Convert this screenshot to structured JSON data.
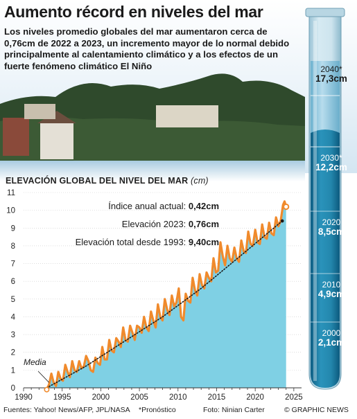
{
  "header": {
    "title": "Aumento récord en niveles del mar",
    "subtitle": "Los niveles promedio globales del mar aumentaron cerca de 0,76cm de 2022 a 2023, un incremento mayor de lo normal debido principalmente al calentamiento climático y a los efectos de un fuerte fenómeno climático El Niño"
  },
  "chart_title": "ELEVACIÓN GLOBAL DEL NIVEL DEL MAR",
  "chart_unit": "(cm)",
  "info": [
    {
      "label": "Índice anual actual: ",
      "value": "0,42cm"
    },
    {
      "label": "Elevación 2023: ",
      "value": "0,76cm"
    },
    {
      "label": "Elevación total desde 1993: ",
      "value": "9,40cm"
    }
  ],
  "media_label": "Media",
  "tube": [
    {
      "year": "2040*",
      "value": "17,3cm",
      "projected": true
    },
    {
      "year": "2030*",
      "value": "12,2cm",
      "projected": true
    },
    {
      "year": "2020",
      "value": "8,5cm",
      "projected": false
    },
    {
      "year": "2010",
      "value": "4,9cm",
      "projected": false
    },
    {
      "year": "2000",
      "value": "2,1cm",
      "projected": false
    }
  ],
  "footer": {
    "sources": "Fuentes: Yahoo! News/AFP, JPL/NASA",
    "note": "*Pronóstico",
    "photo": "Foto: Ninian Carter",
    "credit": "© GRAPHIC NEWS"
  },
  "colors": {
    "area": "#7fd0e4",
    "line": "#f08a2c",
    "tube_water": "#1d7fa6",
    "sky": "#dcebf5"
  },
  "chart_data": {
    "type": "line",
    "title": "ELEVACIÓN GLOBAL DEL NIVEL DEL MAR",
    "ylabel": "(cm)",
    "xlim": [
      1990,
      2026
    ],
    "ylim": [
      0,
      11
    ],
    "xticks": [
      "1990",
      "1995",
      "2000",
      "2005",
      "2010",
      "2015",
      "2020",
      "2025"
    ],
    "yticks": [
      "0",
      "1",
      "2",
      "3",
      "4",
      "5",
      "6",
      "7",
      "8",
      "9",
      "10",
      "11"
    ],
    "series": [
      {
        "kind": "observed",
        "x": [
          1993.0,
          1993.3,
          1993.6,
          1993.9,
          1994.2,
          1994.5,
          1994.8,
          1995.1,
          1995.4,
          1995.7,
          1996.0,
          1996.3,
          1996.6,
          1996.9,
          1997.2,
          1997.5,
          1997.8,
          1998.1,
          1998.4,
          1998.7,
          1999.0,
          1999.3,
          1999.6,
          1999.9,
          2000.2,
          2000.5,
          2000.8,
          2001.1,
          2001.4,
          2001.7,
          2002.0,
          2002.3,
          2002.6,
          2002.9,
          2003.2,
          2003.5,
          2003.8,
          2004.1,
          2004.4,
          2004.7,
          2005.0,
          2005.3,
          2005.6,
          2005.9,
          2006.2,
          2006.5,
          2006.8,
          2007.1,
          2007.4,
          2007.7,
          2008.0,
          2008.3,
          2008.6,
          2008.9,
          2009.2,
          2009.5,
          2009.8,
          2010.1,
          2010.4,
          2010.7,
          2011.0,
          2011.3,
          2011.6,
          2011.9,
          2012.2,
          2012.5,
          2012.8,
          2013.1,
          2013.4,
          2013.7,
          2014.0,
          2014.3,
          2014.6,
          2014.9,
          2015.2,
          2015.5,
          2015.8,
          2016.1,
          2016.4,
          2016.7,
          2017.0,
          2017.3,
          2017.6,
          2017.9,
          2018.2,
          2018.5,
          2018.8,
          2019.1,
          2019.4,
          2019.7,
          2020.0,
          2020.3,
          2020.6,
          2020.9,
          2021.2,
          2021.5,
          2021.8,
          2022.1,
          2022.4,
          2022.7,
          2023.0,
          2023.3,
          2023.6,
          2023.8,
          2024.0
        ],
        "values": [
          -0.1,
          0.2,
          0.8,
          0.3,
          0.1,
          0.9,
          0.5,
          0.4,
          1.3,
          0.9,
          0.6,
          1.5,
          1.0,
          0.9,
          1.5,
          1.1,
          1.2,
          1.8,
          1.5,
          1.0,
          0.9,
          1.7,
          1.4,
          1.3,
          2.3,
          1.6,
          1.6,
          2.7,
          2.1,
          2.0,
          2.8,
          2.6,
          2.3,
          3.4,
          2.7,
          2.6,
          3.5,
          3.1,
          2.7,
          3.5,
          3.4,
          3.1,
          4.0,
          3.4,
          3.2,
          4.3,
          3.8,
          3.4,
          4.7,
          4.0,
          3.8,
          5.0,
          4.4,
          4.1,
          5.2,
          4.6,
          4.8,
          5.6,
          4.0,
          3.8,
          5.3,
          4.9,
          4.8,
          6.2,
          5.5,
          5.2,
          6.4,
          5.8,
          5.6,
          6.5,
          6.2,
          6.0,
          7.3,
          6.5,
          6.6,
          8.2,
          7.4,
          6.9,
          8.0,
          7.3,
          7.1,
          7.9,
          7.3,
          7.1,
          8.3,
          7.7,
          7.6,
          8.8,
          8.1,
          8.0,
          8.9,
          8.2,
          8.1,
          9.2,
          8.5,
          8.4,
          9.3,
          8.7,
          8.6,
          9.6,
          9.1,
          9.4,
          10.3,
          10.5,
          10.2
        ]
      },
      {
        "kind": "trend",
        "name": "Media",
        "x": [
          1993,
          1998,
          2003,
          2008,
          2013,
          2018,
          2023.5
        ],
        "values": [
          0.0,
          1.2,
          2.6,
          4.0,
          5.6,
          7.4,
          9.4
        ]
      }
    ]
  }
}
